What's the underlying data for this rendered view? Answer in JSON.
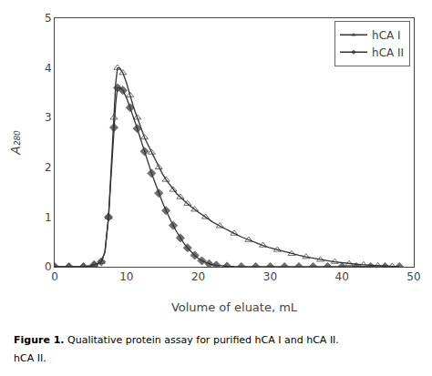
{
  "chart_data": {
    "type": "line",
    "xlabel": "Volume of eluate, mL",
    "ylabel": "A₂₈₀",
    "xlim": [
      0,
      50
    ],
    "ylim": [
      0,
      5
    ],
    "xticks": [
      0,
      10,
      20,
      30,
      40,
      50
    ],
    "yticks": [
      0,
      1,
      2,
      3,
      4,
      5
    ],
    "grid": false,
    "legend": "upper right",
    "annotations": [
      "Figure 1.",
      " Qualitative protein assay for purified hCA I and hCA II.",
      "hCA II."
    ],
    "series": [
      {
        "name": "hCA I",
        "color": "#333333",
        "marker": "triangle",
        "x": [
          0,
          1,
          2,
          3,
          4,
          5,
          5.5,
          6,
          6.5,
          7,
          7.5,
          8,
          8.25,
          8.5,
          8.75,
          9,
          9.5,
          10,
          10.5,
          11,
          11.5,
          12,
          12.5,
          13,
          13.5,
          14,
          14.5,
          15,
          15.5,
          16,
          16.5,
          17,
          17.5,
          18,
          18.5,
          19,
          19.5,
          20,
          21,
          22,
          23,
          24,
          25,
          26,
          27,
          28,
          29,
          30,
          31,
          32,
          33,
          34,
          35,
          36,
          37,
          38,
          39,
          40,
          41,
          42,
          43,
          44,
          45,
          46,
          47,
          48
        ],
        "values": [
          0,
          0,
          0,
          0,
          0,
          0.02,
          0.04,
          0.06,
          0.1,
          0.3,
          1.0,
          2.3,
          3.0,
          3.7,
          4.0,
          4.0,
          3.9,
          3.7,
          3.45,
          3.2,
          3.0,
          2.8,
          2.6,
          2.45,
          2.3,
          2.15,
          2.0,
          1.87,
          1.75,
          1.65,
          1.55,
          1.47,
          1.4,
          1.33,
          1.27,
          1.21,
          1.15,
          1.1,
          1.0,
          0.9,
          0.82,
          0.74,
          0.67,
          0.6,
          0.54,
          0.48,
          0.43,
          0.38,
          0.34,
          0.3,
          0.26,
          0.23,
          0.2,
          0.17,
          0.14,
          0.12,
          0.1,
          0.08,
          0.06,
          0.05,
          0.04,
          0.03,
          0.02,
          0.01,
          0.01,
          0.0
        ]
      },
      {
        "name": "hCA II",
        "color": "#333333",
        "marker": "diamond",
        "x": [
          0,
          1,
          2,
          3,
          4,
          5,
          5.5,
          6,
          6.5,
          7,
          7.5,
          8,
          8.25,
          8.5,
          8.75,
          9,
          9.5,
          10,
          10.5,
          11,
          11.5,
          12,
          12.5,
          13,
          13.5,
          14,
          14.5,
          15,
          15.5,
          16,
          16.5,
          17,
          17.5,
          18,
          18.5,
          19,
          19.5,
          20,
          20.5,
          21,
          21.5,
          22,
          22.5,
          23,
          24,
          25,
          26,
          27,
          28,
          29,
          30,
          31,
          32,
          33,
          34,
          35,
          36,
          37,
          38,
          39,
          40,
          41,
          42,
          43,
          44,
          45,
          46,
          47,
          48
        ],
        "values": [
          0,
          0,
          0,
          0,
          0,
          0.02,
          0.04,
          0.06,
          0.1,
          0.3,
          1.0,
          2.1,
          2.8,
          3.3,
          3.6,
          3.6,
          3.55,
          3.4,
          3.2,
          3.0,
          2.78,
          2.55,
          2.32,
          2.1,
          1.88,
          1.68,
          1.48,
          1.3,
          1.13,
          0.97,
          0.83,
          0.7,
          0.58,
          0.47,
          0.38,
          0.3,
          0.23,
          0.17,
          0.12,
          0.09,
          0.06,
          0.04,
          0.03,
          0.02,
          0.01,
          0.005,
          0.0,
          0.0,
          0.0,
          0.0,
          0.0,
          0.0,
          0.0,
          0.0,
          0.0,
          0.0,
          0.0,
          0.0,
          0.0,
          0.0,
          0.0,
          0.0,
          0.0,
          0.0,
          0.0,
          0.0,
          0.0,
          0.0,
          0.0
        ]
      }
    ]
  }
}
